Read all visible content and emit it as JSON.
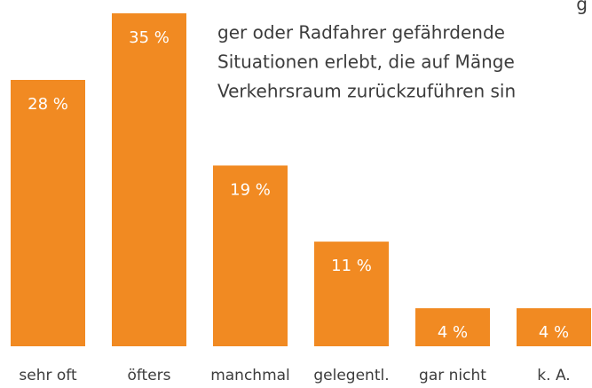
{
  "chart_data": {
    "type": "bar",
    "annotations": [
      "g",
      "ger oder Radfahrer gefährdende",
      "Situationen erlebt, die auf Mänge",
      "Verkehrsraum zurückzuführen sin"
    ],
    "categories": [
      "sehr oft",
      "öfters",
      "manchmal",
      "gelegentl.",
      "gar nicht",
      "k. A."
    ],
    "values": [
      28,
      35,
      19,
      11,
      4,
      4
    ],
    "value_labels": [
      "28 %",
      "35 %",
      "19 %",
      "11 %",
      "4 %",
      "4 %"
    ],
    "color": "#f18a22",
    "ylim": [
      0,
      35
    ]
  }
}
